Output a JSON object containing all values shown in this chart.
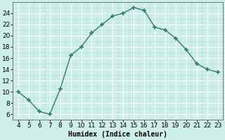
{
  "x": [
    4,
    5,
    6,
    7,
    8,
    9,
    10,
    11,
    12,
    13,
    14,
    15,
    16,
    17,
    18,
    19,
    20,
    21,
    22,
    23
  ],
  "y": [
    10,
    8.5,
    6.5,
    6,
    10.5,
    16.5,
    18,
    20.5,
    22,
    23.5,
    24,
    25,
    24.5,
    21.5,
    21,
    19.5,
    17.5,
    15,
    14,
    13.5
  ],
  "line_color": "#2e7d6e",
  "marker": "+",
  "marker_size": 4,
  "marker_linewidth": 1.2,
  "bg_color": "#ceeee8",
  "grid_major_color": "#ffffff",
  "grid_minor_color": "#b8ddd8",
  "xlabel": "Humidex (Indice chaleur)",
  "xlim": [
    3.5,
    23.5
  ],
  "ylim": [
    5,
    26
  ],
  "xticks": [
    4,
    5,
    6,
    7,
    8,
    9,
    10,
    11,
    12,
    13,
    14,
    15,
    16,
    17,
    18,
    19,
    20,
    21,
    22,
    23
  ],
  "yticks": [
    6,
    8,
    10,
    12,
    14,
    16,
    18,
    20,
    22,
    24
  ],
  "label_fontsize": 7,
  "tick_fontsize": 6.5
}
